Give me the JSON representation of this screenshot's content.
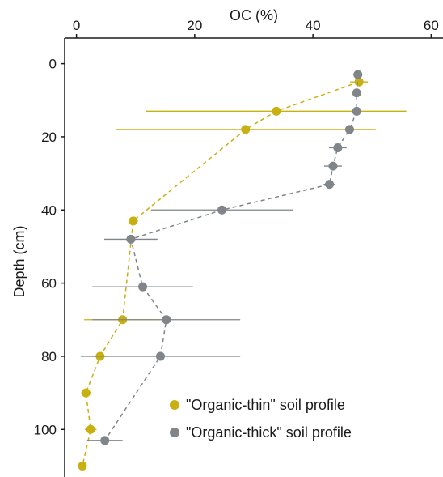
{
  "chart_data": {
    "type": "scatter",
    "title": "",
    "xlabel": "OC (%)",
    "ylabel": "Depth (cm)",
    "x_axis_position": "top",
    "y_axis_inverted": true,
    "xlim": [
      -2,
      62
    ],
    "ylim": [
      113,
      -7
    ],
    "x_ticks": [
      0,
      20,
      40,
      60
    ],
    "y_ticks": [
      0,
      20,
      40,
      60,
      80,
      100
    ],
    "grid": false,
    "legend_position": "bottom-right",
    "series": [
      {
        "name": "\"Organic-thin\" soil profile",
        "color": "#c9b011",
        "line_style": "dashed",
        "points": [
          {
            "depth": 5,
            "oc": 47.8,
            "err": 1.5
          },
          {
            "depth": 13,
            "oc": 33.8,
            "err": 22
          },
          {
            "depth": 18,
            "oc": 28.6,
            "err": 22
          },
          {
            "depth": 43,
            "oc": 9.6,
            "err": 0.8
          },
          {
            "depth": 70,
            "oc": 7.8,
            "err": 6.5
          },
          {
            "depth": 80,
            "oc": 4.0,
            "err": 1.5
          },
          {
            "depth": 90,
            "oc": 1.6,
            "err": 0.8
          },
          {
            "depth": 100,
            "oc": 2.4,
            "err": 1.0
          },
          {
            "depth": 110,
            "oc": 1.0,
            "err": 0.5
          }
        ]
      },
      {
        "name": "\"Organic-thick\" soil profile",
        "color": "#7f8588",
        "line_style": "dashed",
        "points": [
          {
            "depth": 3,
            "oc": 47.6,
            "err": 0.8
          },
          {
            "depth": 8,
            "oc": 47.4,
            "err": 0.8
          },
          {
            "depth": 13,
            "oc": 47.4,
            "err": 0.8
          },
          {
            "depth": 18,
            "oc": 46.2,
            "err": 0.8
          },
          {
            "depth": 23,
            "oc": 44.2,
            "err": 1.5
          },
          {
            "depth": 28,
            "oc": 43.4,
            "err": 1.5
          },
          {
            "depth": 33,
            "oc": 42.8,
            "err": 1.0
          },
          {
            "depth": 40,
            "oc": 24.6,
            "err": 12
          },
          {
            "depth": 48,
            "oc": 9.2,
            "err": 4.5
          },
          {
            "depth": 61,
            "oc": 11.2,
            "err": 8.5
          },
          {
            "depth": 70,
            "oc": 15.2,
            "err": 12.5
          },
          {
            "depth": 80,
            "oc": 14.2,
            "err": 13.5
          },
          {
            "depth": 103,
            "oc": 4.8,
            "err": 3.0
          }
        ]
      }
    ]
  }
}
